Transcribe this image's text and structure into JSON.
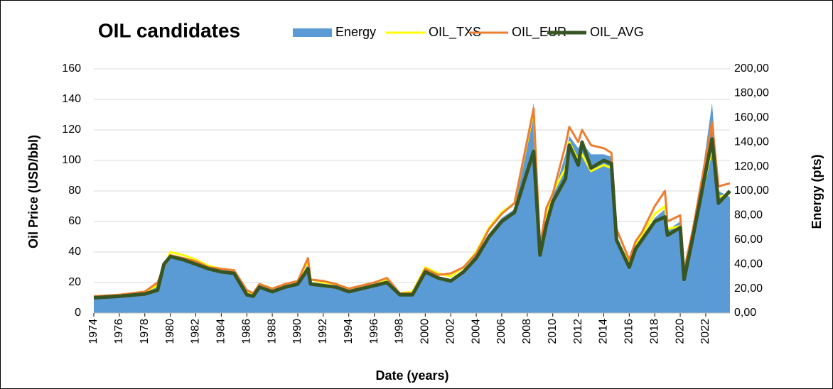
{
  "chart_data": {
    "type": "area-line",
    "title": "OIL candidates",
    "x_label": "Date (years)",
    "y_label": "Oil Price (USD/bbl)",
    "y2_label": "Energy (pts)",
    "x": [
      1974,
      1976,
      1978,
      1979,
      1979.5,
      1980,
      1981,
      1982,
      1983,
      1984,
      1985,
      1986,
      1986.5,
      1987,
      1988,
      1989,
      1990,
      1990.8,
      1991,
      1992,
      1993,
      1994,
      1995,
      1996,
      1997,
      1998,
      1999,
      2000,
      2001,
      2002,
      2003,
      2004,
      2005,
      2006,
      2007,
      2008.5,
      2009,
      2009.5,
      2010,
      2011,
      2011.3,
      2012,
      2012.3,
      2013,
      2014,
      2014.6,
      2015,
      2016,
      2016.5,
      2017,
      2018,
      2018.8,
      2019,
      2020,
      2020.3,
      2021,
      2022.5,
      2023,
      2023.9
    ],
    "series": [
      {
        "name": "Energy",
        "color": "#5b9bd5",
        "axis": "y2",
        "values": [
          14,
          15,
          17,
          25,
          40,
          47,
          46,
          42,
          37,
          36,
          34,
          16,
          14,
          22,
          18,
          22,
          25,
          40,
          25,
          24,
          22,
          19,
          21,
          24,
          27,
          15,
          16,
          34,
          30,
          28,
          35,
          48,
          65,
          78,
          85,
          172,
          50,
          82,
          95,
          130,
          145,
          135,
          140,
          130,
          130,
          128,
          60,
          38,
          55,
          60,
          78,
          85,
          68,
          75,
          25,
          60,
          172,
          100,
          95
        ]
      },
      {
        "name": "OIL_TXS",
        "color": "#ffff00",
        "values": [
          11,
          12,
          14,
          18,
          30,
          40,
          38,
          35,
          31,
          29,
          28,
          14,
          12,
          19,
          16,
          19,
          21,
          34,
          22,
          20,
          19,
          16,
          18,
          20,
          22,
          13,
          14,
          30,
          26,
          24,
          30,
          40,
          56,
          66,
          72,
          132,
          42,
          65,
          79,
          95,
          112,
          100,
          104,
          93,
          97,
          95,
          48,
          33,
          45,
          51,
          65,
          70,
          55,
          57,
          25,
          52,
          108,
          76,
          78
        ]
      },
      {
        "name": "OIL_EUR",
        "color": "#ed7d31",
        "values": [
          11,
          12,
          14,
          20,
          30,
          38,
          36,
          34,
          30,
          29,
          28,
          15,
          13,
          19,
          16,
          19,
          21,
          36,
          22,
          21,
          19,
          16,
          18,
          20,
          23,
          13,
          13,
          29,
          25,
          26,
          30,
          39,
          55,
          65,
          72,
          134,
          44,
          69,
          78,
          110,
          122,
          112,
          120,
          110,
          108,
          105,
          55,
          35,
          47,
          53,
          70,
          80,
          60,
          64,
          28,
          55,
          125,
          83,
          85
        ]
      },
      {
        "name": "OIL_AVG",
        "color": "#375623",
        "values": [
          10,
          11,
          12.5,
          15,
          32,
          37,
          35,
          32,
          29,
          27,
          26,
          12,
          11,
          17,
          14,
          17,
          19,
          29,
          19,
          18,
          17,
          14,
          16,
          18,
          20,
          12,
          12,
          27,
          23,
          21,
          27,
          36,
          50,
          60,
          66,
          106,
          38,
          58,
          73,
          88,
          110,
          97,
          112,
          95,
          100,
          98,
          48,
          30,
          42,
          48,
          60,
          63,
          51,
          56,
          22,
          50,
          114,
          72,
          80
        ]
      }
    ],
    "xlim": [
      1974,
      2023.9
    ],
    "xticks": [
      1974,
      1976,
      1978,
      1980,
      1982,
      1984,
      1986,
      1988,
      1990,
      1992,
      1994,
      1996,
      1998,
      2000,
      2002,
      2004,
      2006,
      2008,
      2010,
      2012,
      2014,
      2016,
      2018,
      2020,
      2022
    ],
    "ylim": [
      0,
      160
    ],
    "yticks": [
      0,
      20,
      40,
      60,
      80,
      100,
      120,
      140,
      160
    ],
    "y2lim": [
      0,
      200
    ],
    "y2ticks": [
      {
        "value": 0,
        "label": "0,00"
      },
      {
        "value": 20,
        "label": "20,00"
      },
      {
        "value": 40,
        "label": "40,00"
      },
      {
        "value": 60,
        "label": "60,00"
      },
      {
        "value": 80,
        "label": "80,00"
      },
      {
        "value": 100,
        "label": "100,00"
      },
      {
        "value": 120,
        "label": "120,00"
      },
      {
        "value": 140,
        "label": "140,00"
      },
      {
        "value": 160,
        "label": "160,00"
      },
      {
        "value": 180,
        "label": "180,00"
      },
      {
        "value": 200,
        "label": "200,00"
      }
    ],
    "grid": true,
    "legend": "top"
  }
}
